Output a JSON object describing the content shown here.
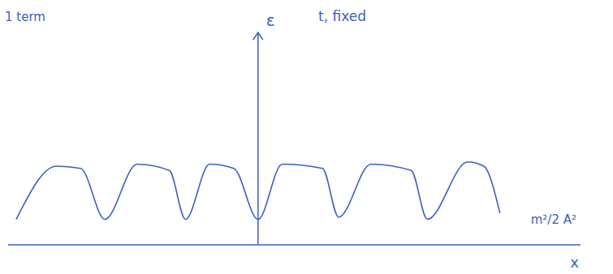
{
  "chart_data": {
    "type": "line",
    "title": "1 term",
    "annotations": [
      "t, fixed"
    ],
    "x_label": "x",
    "y_label": "ε",
    "x": [
      -3.0,
      -2.5,
      -2.2,
      -1.9,
      -1.5,
      -1.1,
      -0.9,
      -0.6,
      -0.3,
      0.0,
      0.3,
      0.8,
      1.0,
      1.4,
      1.9,
      2.1,
      2.6,
      2.8,
      3.0
    ],
    "values": [
      1.2,
      3.7,
      3.6,
      1.2,
      3.8,
      3.5,
      1.2,
      3.8,
      3.6,
      1.2,
      3.8,
      3.6,
      1.3,
      3.8,
      3.5,
      1.2,
      3.9,
      3.7,
      1.5
    ],
    "baseline": {
      "value": 1.2,
      "label": "m²/2 A²"
    },
    "xlim": [
      -3.1,
      4.0
    ],
    "ylim": [
      0,
      10
    ],
    "xticks": [],
    "yticks": [],
    "tick_labels": false,
    "grid": false,
    "color": "#3b5fc0"
  }
}
